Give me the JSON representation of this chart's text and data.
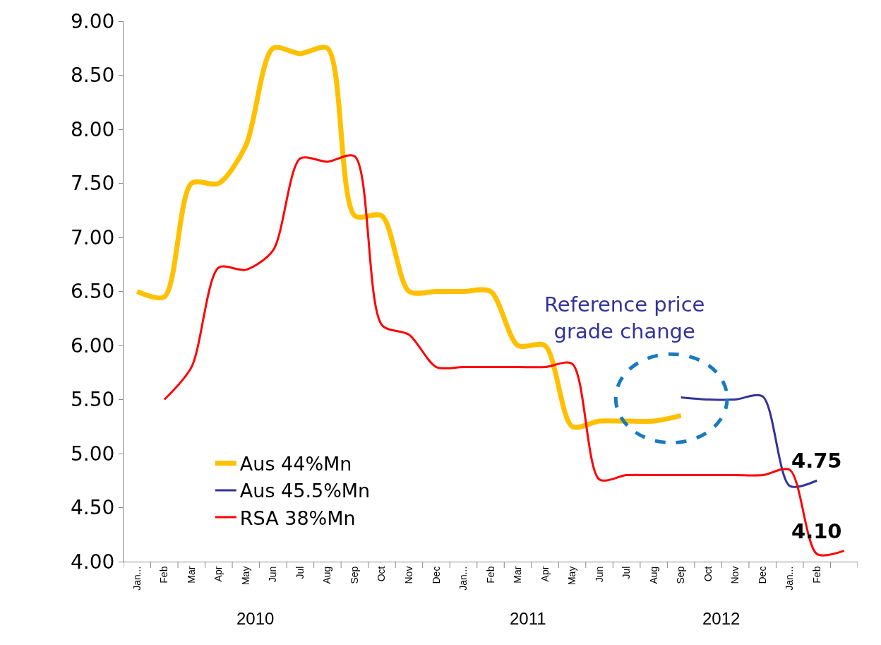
{
  "chart_data": {
    "type": "line",
    "categories": [
      "Jan...",
      "Feb",
      "Mar",
      "Apr",
      "May",
      "Jun",
      "Jul",
      "Aug",
      "Sep",
      "Oct",
      "Nov",
      "Dec",
      "Jan...",
      "Feb",
      "Mar",
      "Apr",
      "May",
      "Jun",
      "Jul",
      "Aug",
      "Sep",
      "Oct",
      "Nov",
      "Dec",
      "Jan...",
      "Feb",
      null
    ],
    "series": [
      {
        "name": "Aus 44%Mn",
        "color": "#ffc000",
        "values": [
          6.5,
          6.45,
          7.5,
          7.5,
          7.85,
          8.75,
          8.7,
          8.75,
          7.2,
          7.2,
          6.5,
          6.5,
          6.5,
          6.5,
          6.0,
          6.0,
          5.25,
          5.3,
          5.3,
          5.3,
          5.35,
          null,
          null,
          null,
          null,
          null,
          null
        ]
      },
      {
        "name": "Aus 45.5%Mn",
        "color": "#333399",
        "values": [
          null,
          null,
          null,
          null,
          null,
          null,
          null,
          null,
          null,
          null,
          null,
          null,
          null,
          null,
          null,
          null,
          null,
          null,
          null,
          null,
          5.52,
          5.5,
          5.5,
          5.53,
          4.7,
          4.75,
          null
        ]
      },
      {
        "name": "RSA 38%Mn",
        "color": "#ff0000",
        "values": [
          null,
          5.5,
          5.8,
          6.72,
          6.7,
          6.88,
          7.73,
          7.7,
          7.75,
          6.19,
          6.1,
          5.8,
          5.8,
          5.8,
          5.8,
          5.8,
          5.83,
          4.76,
          4.8,
          4.8,
          4.8,
          4.8,
          4.8,
          4.8,
          4.85,
          4.07,
          4.1
        ]
      }
    ],
    "ylim": [
      4,
      9
    ],
    "yticks": [
      {
        "value": 4,
        "label": "4.00"
      },
      {
        "value": 4.5,
        "label": "4.50"
      },
      {
        "value": 5,
        "label": "5.00"
      },
      {
        "value": 5.5,
        "label": "5.50"
      },
      {
        "value": 6,
        "label": "6.00"
      },
      {
        "value": 6.5,
        "label": "6.50"
      },
      {
        "value": 7,
        "label": "7.00"
      },
      {
        "value": 7.5,
        "label": "7.50"
      },
      {
        "value": 8,
        "label": "8.00"
      },
      {
        "value": 8.5,
        "label": "8.50"
      },
      {
        "value": 9,
        "label": "9.00"
      }
    ],
    "grid": false,
    "legend": "bottom left",
    "annotations": [
      "Reference price grade change",
      "2010",
      "2011",
      "2012",
      "4.75",
      "4.10"
    ]
  }
}
